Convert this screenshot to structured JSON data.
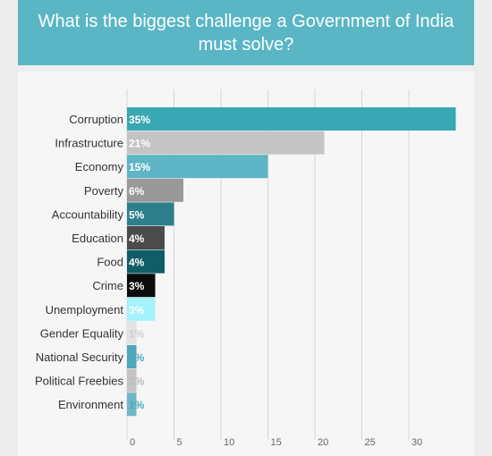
{
  "title": "What is the biggest challenge a Government of India must solve?",
  "colors": {
    "title_bar": "#5ab6c4",
    "panel": "#f6f6f6",
    "background": "#ededed"
  },
  "chart_data": {
    "type": "bar",
    "orientation": "horizontal",
    "title": "What is the biggest challenge a Government of India must solve?",
    "xlabel": "",
    "ylabel": "",
    "xlim": [
      0,
      35
    ],
    "x_ticks": [
      0,
      5,
      10,
      15,
      20,
      25,
      30
    ],
    "grid": "vertical",
    "legend": "none",
    "categories": [
      "Corruption",
      "Infrastructure",
      "Economy",
      "Poverty",
      "Accountability",
      "Education",
      "Food",
      "Crime",
      "Unemployment",
      "Gender Equality",
      "National Security",
      "Political Freebies",
      "Environment"
    ],
    "values": [
      35,
      21,
      15,
      6,
      5,
      4,
      4,
      3,
      3,
      1,
      1,
      1,
      1
    ],
    "value_labels": [
      "35%",
      "21%",
      "15%",
      "6%",
      "5%",
      "4%",
      "4%",
      "3%",
      "3%",
      "1%",
      "1%",
      "1%",
      "1%"
    ],
    "bar_colors": [
      "#3aa7b4",
      "#c4c4c4",
      "#5db5c5",
      "#999999",
      "#2d7f8c",
      "#4b4b4b",
      "#105d68",
      "#0c0c0c",
      "#a5f2fb",
      "#e3e3e3",
      "#4fa8bb",
      "#c4c4c4",
      "#70b6c6"
    ],
    "label_colors": [
      "#ffffff",
      "#ffffff",
      "#ffffff",
      "#ffffff",
      "#ffffff",
      "#ffffff",
      "#ffffff",
      "#ffffff",
      "#ffffff",
      "#d0d0d0",
      "#4fa8bb",
      "#bbbbbb",
      "#4fa8bb"
    ]
  }
}
